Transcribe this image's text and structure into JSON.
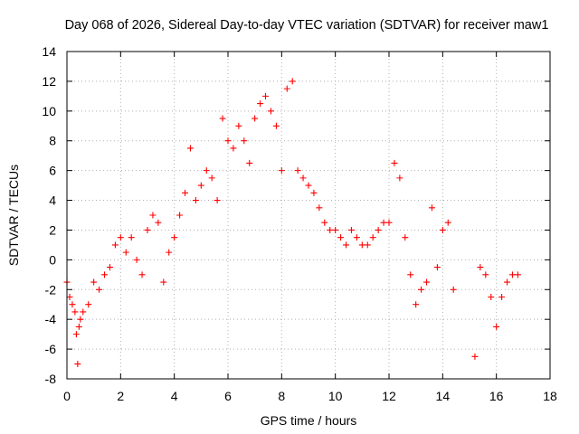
{
  "chart_data": {
    "type": "scatter",
    "title": "Day 068 of 2026, Sidereal Day-to-day VTEC variation (SDTVAR) for receiver maw1",
    "xlabel": "GPS time / hours",
    "ylabel": "SDTVAR / TECUs",
    "xlim": [
      0,
      18
    ],
    "ylim": [
      -8,
      14
    ],
    "xticks": [
      0,
      2,
      4,
      6,
      8,
      10,
      12,
      14,
      16,
      18
    ],
    "yticks": [
      -8,
      -6,
      -4,
      -2,
      0,
      2,
      4,
      6,
      8,
      10,
      12,
      14
    ],
    "xtick_labels": [
      "0",
      "2",
      "4",
      "6",
      "8",
      "10",
      "12",
      "14",
      "16",
      "18"
    ],
    "ytick_labels": [
      "-8",
      "-6",
      "-4",
      "-2",
      "0",
      "2",
      "4",
      "6",
      "8",
      "10",
      "12",
      "14"
    ],
    "grid": true,
    "marker": "+",
    "color": "#ff0000",
    "series": [
      {
        "name": "SDTVAR",
        "x": [
          0.0,
          0.1,
          0.2,
          0.3,
          0.35,
          0.4,
          0.45,
          0.5,
          0.6,
          0.8,
          1.0,
          1.2,
          1.4,
          1.6,
          1.8,
          2.0,
          2.2,
          2.4,
          2.6,
          2.8,
          3.0,
          3.2,
          3.4,
          3.6,
          3.8,
          4.0,
          4.2,
          4.4,
          4.6,
          4.8,
          5.0,
          5.2,
          5.4,
          5.6,
          5.8,
          6.0,
          6.2,
          6.4,
          6.6,
          6.8,
          7.0,
          7.2,
          7.4,
          7.6,
          7.8,
          8.0,
          8.2,
          8.4,
          8.6,
          8.8,
          9.0,
          9.2,
          9.4,
          9.6,
          9.8,
          10.0,
          10.2,
          10.4,
          10.6,
          10.8,
          11.0,
          11.2,
          11.4,
          11.6,
          11.8,
          12.0,
          12.2,
          12.4,
          12.6,
          12.8,
          13.0,
          13.2,
          13.4,
          13.6,
          13.8,
          14.0,
          14.2,
          14.4,
          15.2,
          15.4,
          15.6,
          15.8,
          16.0,
          16.2,
          16.4,
          16.6,
          16.8
        ],
        "y": [
          -1.5,
          -2.5,
          -3.0,
          -3.5,
          -5.0,
          -7.0,
          -4.5,
          -4.0,
          -3.5,
          -3.0,
          -1.5,
          -2.0,
          -1.0,
          -0.5,
          1.0,
          1.5,
          0.5,
          1.5,
          0.0,
          -1.0,
          2.0,
          3.0,
          2.5,
          -1.5,
          0.5,
          1.5,
          3.0,
          4.5,
          7.5,
          4.0,
          5.0,
          6.0,
          5.5,
          4.0,
          9.5,
          8.0,
          7.5,
          9.0,
          8.0,
          6.5,
          9.5,
          10.5,
          11.0,
          10.0,
          9.0,
          6.0,
          11.5,
          12.0,
          6.0,
          5.5,
          5.0,
          4.5,
          3.5,
          2.5,
          2.0,
          2.0,
          1.5,
          1.0,
          2.0,
          1.5,
          1.0,
          1.0,
          1.5,
          2.0,
          2.5,
          2.5,
          6.5,
          5.5,
          1.5,
          -1.0,
          -3.0,
          -2.0,
          -1.5,
          3.5,
          -0.5,
          2.0,
          2.5,
          -2.0,
          -6.5,
          -0.5,
          -1.0,
          -2.5,
          -4.5,
          -2.5,
          -1.5,
          -1.0,
          -1.0
        ]
      }
    ]
  }
}
